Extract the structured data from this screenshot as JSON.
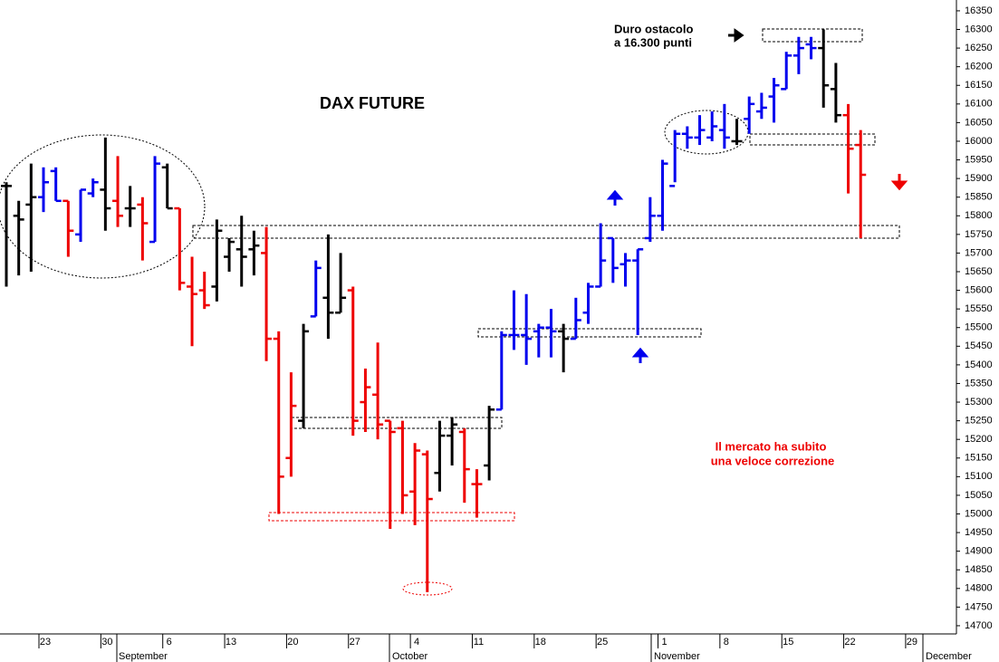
{
  "chart_data": {
    "type": "ohlc",
    "title": "DAX FUTURE",
    "annotations": [
      "Duro ostacolo",
      "a 16.300 punti",
      "Il mercato ha subito",
      "una veloce correzione"
    ],
    "months": [
      "September",
      "October",
      "November",
      "December"
    ],
    "categories": [
      null,
      null,
      null,
      "23",
      null,
      null,
      null,
      null,
      "30",
      null,
      null,
      null,
      null,
      "6",
      null,
      null,
      null,
      null,
      "13",
      null,
      null,
      null,
      null,
      "20",
      null,
      null,
      null,
      null,
      "27",
      null,
      null,
      null,
      null,
      "4",
      null,
      null,
      null,
      null,
      "11",
      null,
      null,
      null,
      null,
      "18",
      null,
      null,
      null,
      null,
      "25",
      null,
      null,
      null,
      null,
      "1",
      null,
      null,
      null,
      null,
      "8",
      null,
      null,
      null,
      null,
      "15",
      null,
      null,
      null,
      null,
      "22",
      null,
      null,
      null,
      null,
      "29"
    ],
    "open": [
      15880,
      15800,
      15830,
      15850,
      15920,
      15840,
      15750,
      15860,
      15870,
      15840,
      15820,
      15830,
      15730,
      15930,
      15820,
      15610,
      15600,
      15610,
      15690,
      15710,
      15710,
      15700,
      15470,
      15150,
      15250,
      15530,
      15580,
      15540,
      15600,
      15300,
      15320,
      15250,
      15230,
      15060,
      15160,
      15110,
      15210,
      15220,
      15080,
      15130,
      15280,
      15480,
      15480,
      15490,
      15500,
      15490,
      15470,
      15540,
      15610,
      15740,
      15670,
      15680,
      15740,
      15800,
      15880,
      16020,
      16010,
      16010,
      16030,
      16000,
      16060,
      16080,
      16120,
      16140,
      16230,
      16260,
      16250,
      16140,
      16070,
      15990,
      null,
      null,
      null,
      null
    ],
    "high": [
      15890,
      15840,
      15940,
      15930,
      15930,
      15840,
      15870,
      15900,
      16010,
      15960,
      15880,
      15850,
      15960,
      15940,
      15820,
      15690,
      15650,
      15790,
      15740,
      15800,
      15760,
      15770,
      15490,
      15380,
      15510,
      15680,
      15750,
      15700,
      15610,
      15390,
      15460,
      15250,
      15250,
      15190,
      15170,
      15250,
      15260,
      15230,
      15120,
      15290,
      15490,
      15600,
      15590,
      15510,
      15550,
      15510,
      15580,
      15620,
      15780,
      15740,
      15700,
      15710,
      15850,
      15950,
      16030,
      16040,
      16070,
      16080,
      16100,
      16060,
      16120,
      16130,
      16170,
      16240,
      16280,
      16280,
      16300,
      16210,
      16100,
      16030,
      null,
      null,
      null,
      null
    ],
    "low": [
      15610,
      15640,
      15650,
      15810,
      15840,
      15690,
      15730,
      15850,
      15760,
      15770,
      15770,
      15680,
      15730,
      15820,
      15600,
      15450,
      15550,
      15570,
      15650,
      15610,
      15640,
      15410,
      15000,
      15100,
      15230,
      15530,
      15470,
      15540,
      15210,
      15220,
      15200,
      14960,
      15000,
      14970,
      14790,
      15060,
      15130,
      15030,
      14990,
      15090,
      15280,
      15440,
      15400,
      15420,
      15420,
      15380,
      15470,
      15510,
      15610,
      15620,
      15610,
      15480,
      15730,
      15760,
      15890,
      15980,
      15990,
      16000,
      15980,
      15990,
      16020,
      16060,
      16050,
      16140,
      16180,
      16220,
      16090,
      16050,
      15860,
      15740,
      null,
      null,
      null,
      null
    ],
    "close": [
      15880,
      15790,
      15850,
      15890,
      15840,
      15760,
      15870,
      15890,
      15820,
      15800,
      15820,
      15780,
      15940,
      15820,
      15620,
      15590,
      15560,
      15760,
      15730,
      15690,
      15720,
      15470,
      15100,
      15290,
      15490,
      15660,
      15540,
      15580,
      15250,
      15340,
      15240,
      15220,
      15050,
      15170,
      15040,
      15210,
      15240,
      15120,
      15080,
      15280,
      15480,
      15480,
      15470,
      15500,
      15490,
      15470,
      15520,
      15610,
      15680,
      15660,
      15680,
      15710,
      15800,
      15940,
      16020,
      16010,
      16030,
      16040,
      16010,
      16000,
      16100,
      16090,
      16150,
      16230,
      16250,
      16250,
      16150,
      16070,
      15980,
      15910,
      null,
      null,
      null,
      null
    ],
    "colors": [
      "#000000",
      "#000000",
      "#000000",
      "#0000ee",
      "#0000ee",
      "#ee0000",
      "#0000ee",
      "#0000ee",
      "#000000",
      "#ee0000",
      "#000000",
      "#ee0000",
      "#0000ee",
      "#000000",
      "#ee0000",
      "#ee0000",
      "#ee0000",
      "#000000",
      "#000000",
      "#000000",
      "#000000",
      "#ee0000",
      "#ee0000",
      "#ee0000",
      "#000000",
      "#0000ee",
      "#000000",
      "#000000",
      "#ee0000",
      "#ee0000",
      "#ee0000",
      "#ee0000",
      "#ee0000",
      "#ee0000",
      "#ee0000",
      "#000000",
      "#000000",
      "#ee0000",
      "#ee0000",
      "#000000",
      "#0000ee",
      "#0000ee",
      "#0000ee",
      "#0000ee",
      "#0000ee",
      "#000000",
      "#0000ee",
      "#0000ee",
      "#0000ee",
      "#0000ee",
      "#0000ee",
      "#0000ee",
      "#0000ee",
      "#0000ee",
      "#0000ee",
      "#0000ee",
      "#0000ee",
      "#0000ee",
      "#0000ee",
      "#000000",
      "#0000ee",
      "#0000ee",
      "#0000ee",
      "#0000ee",
      "#0000ee",
      "#0000ee",
      "#000000",
      "#000000",
      "#ee0000",
      "#ee0000",
      null,
      null,
      null,
      null
    ],
    "ylim": [
      14678,
      16379
    ],
    "yticks": [
      14700,
      14750,
      14800,
      14850,
      14900,
      14950,
      15000,
      15050,
      15100,
      15150,
      15200,
      15250,
      15300,
      15350,
      15400,
      15450,
      15500,
      15550,
      15600,
      15650,
      15700,
      15750,
      15800,
      15850,
      15900,
      15950,
      16000,
      16050,
      16100,
      16150,
      16200,
      16250,
      16300,
      16350
    ]
  }
}
